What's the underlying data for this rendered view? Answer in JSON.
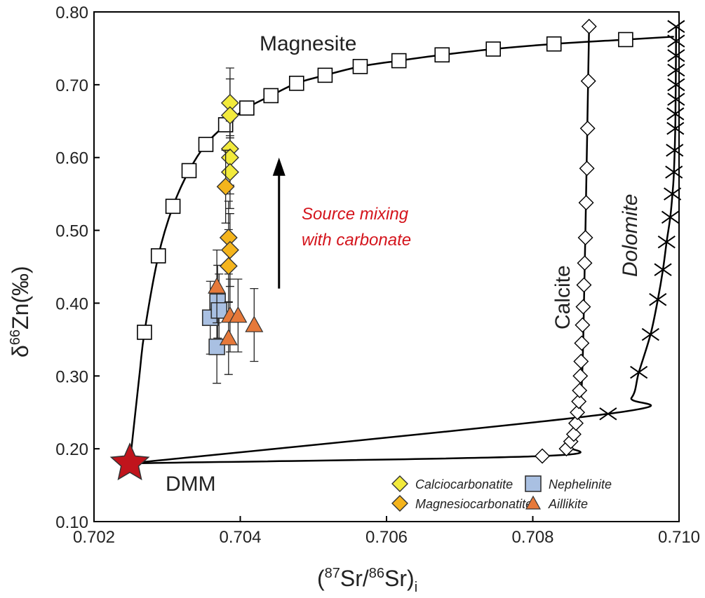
{
  "chart_data": {
    "type": "scatter",
    "xlabel": "(87Sr/86Sr)i",
    "xlabel_parts": {
      "open": "(",
      "sup1": "87",
      "mid": "Sr/",
      "sup2": "86",
      "close": "Sr)",
      "sub": "i"
    },
    "ylabel": "δ66Zn(‰)",
    "ylabel_parts": {
      "pre": "δ",
      "sup": "66",
      "post": "Zn(‰)"
    },
    "xlim": [
      0.702,
      0.71
    ],
    "ylim": [
      0.1,
      0.8
    ],
    "xticks": [
      "0.702",
      "0.704",
      "0.706",
      "0.708",
      "0.710"
    ],
    "yticks": [
      "0.10",
      "0.20",
      "0.30",
      "0.40",
      "0.50",
      "0.60",
      "0.70",
      "0.80"
    ],
    "grid": false,
    "legend_placement": "bottom-right",
    "endmember": {
      "label": "DMM",
      "x": 0.70249,
      "y": 0.18,
      "color": "#c0141c"
    },
    "annotation": {
      "lines": [
        "Source mixing",
        "with carbonate"
      ],
      "color": "#d4141c",
      "arrow": {
        "x": 0.70453,
        "y_from": 0.42,
        "y_to": 0.6
      }
    },
    "mixing_curves": [
      {
        "label": "Magnesite",
        "marker": "square",
        "curve": [
          [
            0.70249,
            0.18
          ],
          [
            0.70262,
            0.3
          ],
          [
            0.70269,
            0.36
          ],
          [
            0.70288,
            0.465
          ],
          [
            0.70308,
            0.533
          ],
          [
            0.7033,
            0.582
          ],
          [
            0.70353,
            0.618
          ],
          [
            0.7038,
            0.645
          ],
          [
            0.70409,
            0.668
          ],
          [
            0.70442,
            0.685
          ],
          [
            0.70477,
            0.702
          ],
          [
            0.70516,
            0.713
          ],
          [
            0.70564,
            0.725
          ],
          [
            0.70617,
            0.733
          ],
          [
            0.70676,
            0.741
          ],
          [
            0.70746,
            0.749
          ],
          [
            0.70829,
            0.756
          ],
          [
            0.70927,
            0.762
          ],
          [
            0.70993,
            0.766
          ]
        ],
        "points": [
          [
            0.70269,
            0.36
          ],
          [
            0.70288,
            0.465
          ],
          [
            0.70308,
            0.533
          ],
          [
            0.7033,
            0.582
          ],
          [
            0.70353,
            0.618
          ],
          [
            0.7038,
            0.645
          ],
          [
            0.70409,
            0.668
          ],
          [
            0.70442,
            0.685
          ],
          [
            0.70477,
            0.702
          ],
          [
            0.70516,
            0.713
          ],
          [
            0.70564,
            0.725
          ],
          [
            0.70617,
            0.733
          ],
          [
            0.70676,
            0.741
          ],
          [
            0.70746,
            0.749
          ],
          [
            0.70829,
            0.756
          ],
          [
            0.70927,
            0.762
          ]
        ]
      },
      {
        "label": "Calcite",
        "marker": "diamond",
        "curve": [
          [
            0.70249,
            0.18
          ],
          [
            0.70813,
            0.19
          ],
          [
            0.70846,
            0.205
          ],
          [
            0.7086,
            0.23
          ],
          [
            0.70866,
            0.27
          ],
          [
            0.70869,
            0.35
          ],
          [
            0.70872,
            0.5
          ],
          [
            0.70877,
            0.78
          ]
        ],
        "points": [
          [
            0.70813,
            0.19
          ],
          [
            0.70846,
            0.2
          ],
          [
            0.70852,
            0.21
          ],
          [
            0.70856,
            0.22
          ],
          [
            0.70859,
            0.235
          ],
          [
            0.70861,
            0.25
          ],
          [
            0.70863,
            0.265
          ],
          [
            0.70864,
            0.28
          ],
          [
            0.70865,
            0.3
          ],
          [
            0.70866,
            0.32
          ],
          [
            0.70867,
            0.345
          ],
          [
            0.70868,
            0.37
          ],
          [
            0.70869,
            0.395
          ],
          [
            0.7087,
            0.425
          ],
          [
            0.70871,
            0.455
          ],
          [
            0.70872,
            0.49
          ],
          [
            0.70873,
            0.538
          ],
          [
            0.70874,
            0.585
          ],
          [
            0.70875,
            0.64
          ],
          [
            0.70876,
            0.705
          ],
          [
            0.70877,
            0.78
          ]
        ]
      },
      {
        "label": "Dolomite",
        "marker": "cross",
        "curve": [
          [
            0.70249,
            0.18
          ],
          [
            0.70903,
            0.248
          ],
          [
            0.70935,
            0.27
          ],
          [
            0.70945,
            0.305
          ],
          [
            0.70961,
            0.357
          ],
          [
            0.70971,
            0.405
          ],
          [
            0.70978,
            0.446
          ],
          [
            0.70983,
            0.484
          ],
          [
            0.70988,
            0.518
          ],
          [
            0.70991,
            0.55
          ],
          [
            0.70993,
            0.58
          ],
          [
            0.70995,
            0.65
          ],
          [
            0.70996,
            0.78
          ]
        ],
        "points": [
          [
            0.70903,
            0.248
          ],
          [
            0.70945,
            0.305
          ],
          [
            0.70961,
            0.357
          ],
          [
            0.70971,
            0.405
          ],
          [
            0.70978,
            0.446
          ],
          [
            0.70983,
            0.484
          ],
          [
            0.70988,
            0.518
          ],
          [
            0.70991,
            0.55
          ],
          [
            0.70993,
            0.58
          ],
          [
            0.70994,
            0.61
          ],
          [
            0.70995,
            0.64
          ],
          [
            0.70995,
            0.66
          ],
          [
            0.70996,
            0.68
          ],
          [
            0.70996,
            0.7
          ],
          [
            0.70996,
            0.72
          ],
          [
            0.70996,
            0.74
          ],
          [
            0.70996,
            0.76
          ],
          [
            0.70996,
            0.78
          ]
        ]
      }
    ],
    "series": [
      {
        "name": "Calciocarbonatite",
        "marker": "diamond",
        "color": "#f2ea3c",
        "points": [
          [
            0.70386,
            0.675,
            0.048
          ],
          [
            0.70386,
            0.658,
            0.05
          ],
          [
            0.70386,
            0.612,
            0.05
          ],
          [
            0.70386,
            0.6,
            0.05
          ],
          [
            0.70386,
            0.58,
            0.05
          ]
        ]
      },
      {
        "name": "Magnesiocarbonatite",
        "marker": "diamond",
        "color": "#f4b41c",
        "points": [
          [
            0.7038,
            0.56,
            0.05
          ],
          [
            0.70384,
            0.49,
            0.05
          ],
          [
            0.70386,
            0.473,
            0.05
          ],
          [
            0.70384,
            0.451,
            0.05
          ]
        ]
      },
      {
        "name": "Nephelinite",
        "marker": "square",
        "color": "#a9c0e2",
        "points": [
          [
            0.70359,
            0.38,
            0.05
          ],
          [
            0.70369,
            0.402,
            0.05
          ],
          [
            0.70371,
            0.39,
            0.05
          ],
          [
            0.70368,
            0.34,
            0.05
          ]
        ]
      },
      {
        "name": "Aillikite",
        "marker": "triangle",
        "color": "#e6793a",
        "points": [
          [
            0.70368,
            0.423,
            0.05
          ],
          [
            0.70386,
            0.383,
            0.05
          ],
          [
            0.70397,
            0.383,
            0.05
          ],
          [
            0.70384,
            0.352,
            0.05
          ],
          [
            0.70419,
            0.37,
            0.05
          ]
        ]
      }
    ]
  }
}
